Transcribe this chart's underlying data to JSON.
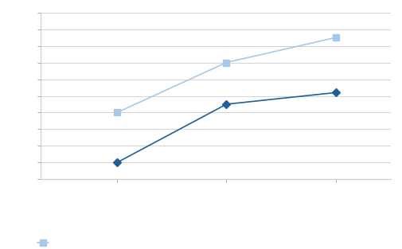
{
  "series1": {
    "x": [
      1,
      2,
      3
    ],
    "y": [
      4,
      7,
      8.5
    ],
    "color": "#a8c8e8",
    "marker": "s",
    "markersize": 6,
    "linewidth": 1.2,
    "label": ""
  },
  "series2": {
    "x": [
      1,
      2,
      3
    ],
    "y": [
      1,
      4.5,
      5.2
    ],
    "color": "#1f6096",
    "marker": "D",
    "markersize": 5,
    "linewidth": 1.2,
    "label": ""
  },
  "xlim": [
    0.3,
    3.5
  ],
  "ylim": [
    0,
    10
  ],
  "xticks": [
    1,
    2,
    3
  ],
  "yticks": [
    0,
    1,
    2,
    3,
    4,
    5,
    6,
    7,
    8,
    9,
    10
  ],
  "background_color": "#ffffff",
  "plot_bg_color": "#ffffff",
  "grid_color": "#cccccc",
  "tick_color": "#888888",
  "spine_color": "#cccccc"
}
